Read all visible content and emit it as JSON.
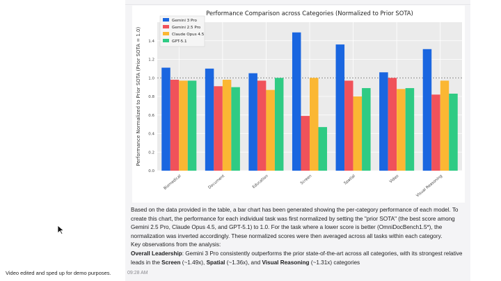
{
  "demo_note": "Video edited and sped up for demo purposes.",
  "timestamp": "09:28 AM",
  "chart_data": {
    "type": "bar",
    "title": "Performance Comparison across Categories (Normalized to Prior SOTA)",
    "xlabel": "",
    "ylabel": "Performance Normalized to Prior SOTA (Prior SOTA = 1.0)",
    "ylim": [
      0,
      1.6
    ],
    "yticks": [
      "0.0",
      "0.2",
      "0.4",
      "0.6",
      "0.8",
      "1.0",
      "1.2",
      "1.4"
    ],
    "reference_line": 1.0,
    "grid": true,
    "legend_position": "top-left",
    "categories": [
      "Biomedical",
      "Document",
      "Education",
      "Screen",
      "Spatial",
      "Video",
      "Visual Reasoning"
    ],
    "series": [
      {
        "name": "Gemini 3 Pro",
        "color": "#1a66e0",
        "values": [
          1.11,
          1.1,
          1.05,
          1.49,
          1.36,
          1.06,
          1.31
        ]
      },
      {
        "name": "Gemini 2.5 Pro",
        "color": "#f0525a",
        "values": [
          0.98,
          0.91,
          0.97,
          0.59,
          0.97,
          1.0,
          0.82
        ]
      },
      {
        "name": "Claude Opus 4.5",
        "color": "#fbb733",
        "values": [
          0.97,
          0.98,
          0.87,
          1.0,
          0.8,
          0.88,
          0.97
        ]
      },
      {
        "name": "GPT-5.1",
        "color": "#2fcb84",
        "values": [
          0.97,
          0.9,
          1.0,
          0.47,
          0.89,
          0.89,
          0.83
        ]
      }
    ]
  },
  "message": {
    "paragraph1": "Based on the data provided in the table, a bar chart has been generated showing the per-category performance of each model. To create this chart, the performance for each individual task was first normalized by setting the \"prior SOTA\" (the best score among Gemini 2.5 Pro, Claude Opus 4.5, and GPT-5.1) to 1.0. For the task where a lower score is better (OmniDocBench1.5*), the normalization was inverted accordingly. These normalized scores were then averaged across all tasks within each category.",
    "observations_heading": "Key observations from the analysis:",
    "leadership_title": "Overall Leadership",
    "leadership_text_1": ": Gemini 3 Pro consistently outperforms the prior state-of-the-art across all categories, with its strongest relative leads in the ",
    "screen_label": "Screen",
    "screen_value": " (~1.49x), ",
    "spatial_label": "Spatial",
    "spatial_value": " (~1.36x), and ",
    "visual_label": "Visual Reasoning",
    "visual_value": " (~1.31x) categories"
  }
}
